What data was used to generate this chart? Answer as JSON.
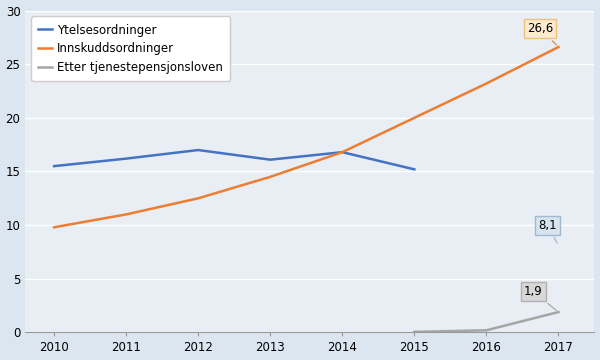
{
  "years": [
    2010,
    2011,
    2012,
    2013,
    2014,
    2015,
    2016,
    2017
  ],
  "ytelsesordninger": [
    15.5,
    16.2,
    17.0,
    16.1,
    16.8,
    15.2,
    null,
    8.1
  ],
  "innskuddsordninger": [
    9.8,
    11.0,
    12.5,
    14.5,
    16.8,
    20.0,
    23.2,
    26.6
  ],
  "tjenestepensjonsloven": [
    null,
    null,
    null,
    null,
    null,
    0.05,
    0.2,
    1.9
  ],
  "color_ytelse": "#4472C4",
  "color_innskudd": "#ED7D31",
  "color_tjeneste": "#A5A5A5",
  "bg_color": "#DCE6F1",
  "plot_bg": "#E8EEF4",
  "label_ytelse": "Ytelsesordninger",
  "label_innskudd": "Innskuddsordninger",
  "label_tjeneste": "Etter tjenestepensjonsloven",
  "ylim": [
    0,
    30
  ],
  "yticks": [
    0,
    5,
    10,
    15,
    20,
    25,
    30
  ],
  "annotation_26_6": "26,6",
  "annotation_8_1": "8,1",
  "annotation_1_9": "1,9"
}
